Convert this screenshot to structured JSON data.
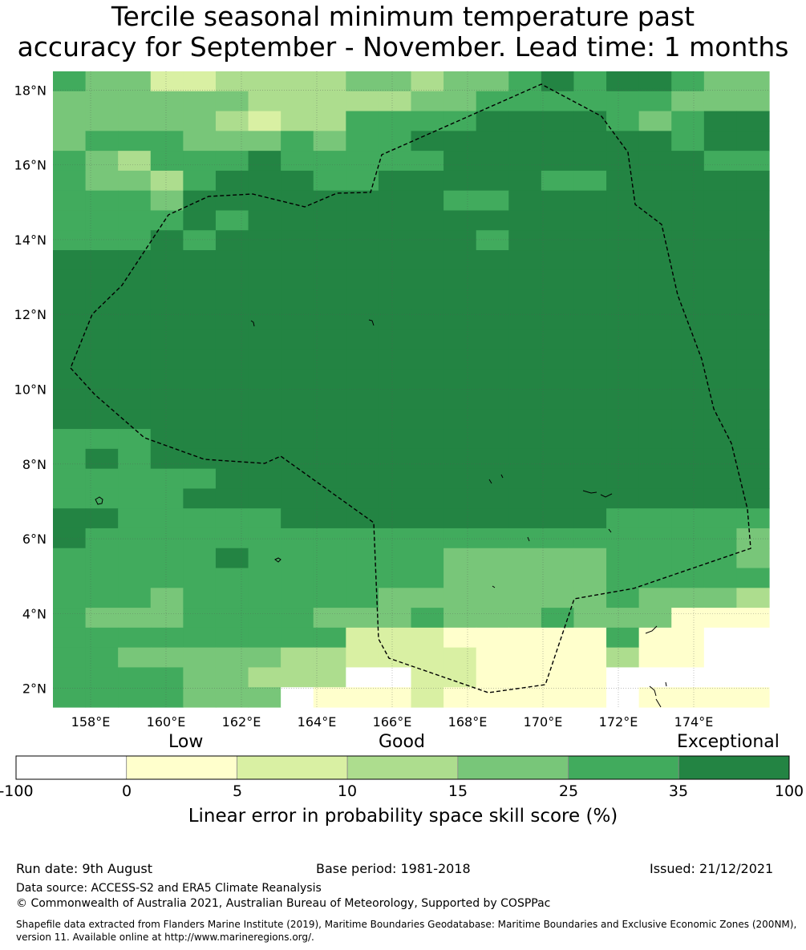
{
  "title_line1": "Tercile seasonal minimum temperature past",
  "title_line2": "accuracy for September - November. Lead time: 1 months",
  "map": {
    "x_ticks": [
      "158°E",
      "160°E",
      "162°E",
      "164°E",
      "166°E",
      "168°E",
      "170°E",
      "172°E",
      "174°E"
    ],
    "y_ticks": [
      "18°N",
      "16°N",
      "14°N",
      "12°N",
      "10°N",
      "8°N",
      "6°N",
      "4°N",
      "2°N"
    ],
    "lon_range": [
      157,
      176
    ],
    "lat_range": [
      1.5,
      18.5
    ]
  },
  "colorbar": {
    "category_labels": [
      "Low",
      "Good",
      "Exceptional"
    ],
    "ticks": [
      "-100",
      "0",
      "5",
      "10",
      "15",
      "25",
      "35",
      "100"
    ],
    "colors": [
      "#ffffff",
      "#ffffcc",
      "#d9f0a3",
      "#addd8e",
      "#78c679",
      "#41ab5d",
      "#238443"
    ],
    "title": "Linear error in probability space skill score (%)"
  },
  "footer": {
    "run_date": "Run date: 9th August",
    "base_period": "Base period: 1981-2018",
    "issued": "Issued: 21/12/2021",
    "data_source": "Data source: ACCESS-S2 and ERA5 Climate Reanalysis",
    "copyright": "© Commonwealth of Australia 2021, Australian Bureau of Meteorology, Supported by COSPPac",
    "shapefile_line1": "Shapefile data extracted from Flanders Marine Institute (2019), Maritime Boundaries Geodatabase: Maritime Boundaries and Exclusive Economic Zones (200NM),",
    "shapefile_line2": "version 11. Available online at http://www.marineregions.org/."
  },
  "grid": [
    "5442233334434456566544",
    "4444443333344555555444",
    "4444432335555666654566",
    "4555444545566666666566",
    "5435556555556666666655",
    "5443566655666665566666",
    "5554666666665566666666",
    "5555656666666666666666",
    "5556566666666566666666",
    "6666666666666666666666",
    "6666666666666666666666",
    "6666666666666666666666",
    "6666666666666666666666",
    "6666666666666666666666",
    "6666666666666666666666",
    "6666666666666666666666",
    "6666666666666666666666",
    "6666666666666666666666",
    "5556666666666666666666",
    "5656666666666666666666",
    "5555566666666666666666",
    "5555666666666666666666",
    "6655555666666666655555",
    "6555555555555555555554",
    "5555565555554444455554",
    "5555555555554444455555",
    "5554555555444444454443",
    "5444555544454445444111",
    "5555555552221111151100",
    "5544444332222111131100",
    "5555443330022111100000",
    "5555444011121111101111"
  ]
}
